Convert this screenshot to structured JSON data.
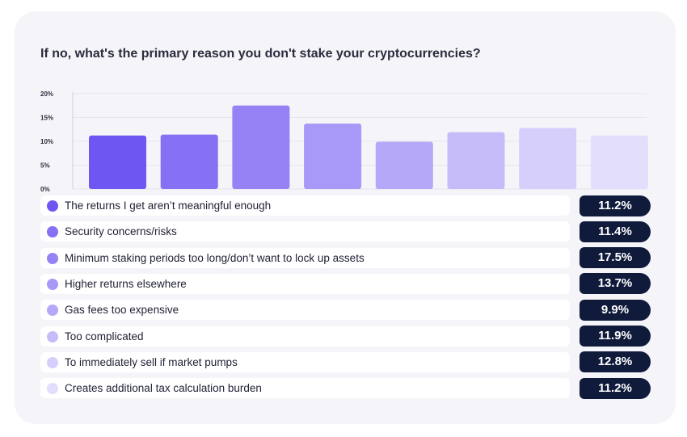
{
  "title": "If no, what's the primary reason you don't stake your cryptocurrencies?",
  "chart_data": {
    "type": "bar",
    "title": "If no, what's the primary reason you don't stake your cryptocurrencies?",
    "xlabel": "",
    "ylabel": "",
    "ylim": [
      0,
      20
    ],
    "yticks": [
      "20%",
      "15%",
      "10%",
      "5%",
      "0%"
    ],
    "grid": true,
    "legend_position": "below",
    "categories": [
      "The returns I get aren’t meaningful enough",
      "Security concerns/risks",
      "Minimum staking periods too long/don’t want to lock up assets",
      "Higher returns elsewhere",
      "Gas fees too expensive",
      "Too complicated",
      "To immediately sell if market pumps",
      "Creates additional tax calculation burden"
    ],
    "values": [
      11.2,
      11.4,
      17.5,
      13.7,
      9.9,
      11.9,
      12.8,
      11.2
    ],
    "value_labels": [
      "11.2%",
      "11.4%",
      "17.5%",
      "13.7%",
      "9.9%",
      "11.9%",
      "12.8%",
      "11.2%"
    ],
    "colors": [
      "#6e56f2",
      "#8670f4",
      "#9682f5",
      "#a898f7",
      "#b5a8f8",
      "#c6bcfa",
      "#d6cffb",
      "#e2defc"
    ]
  }
}
